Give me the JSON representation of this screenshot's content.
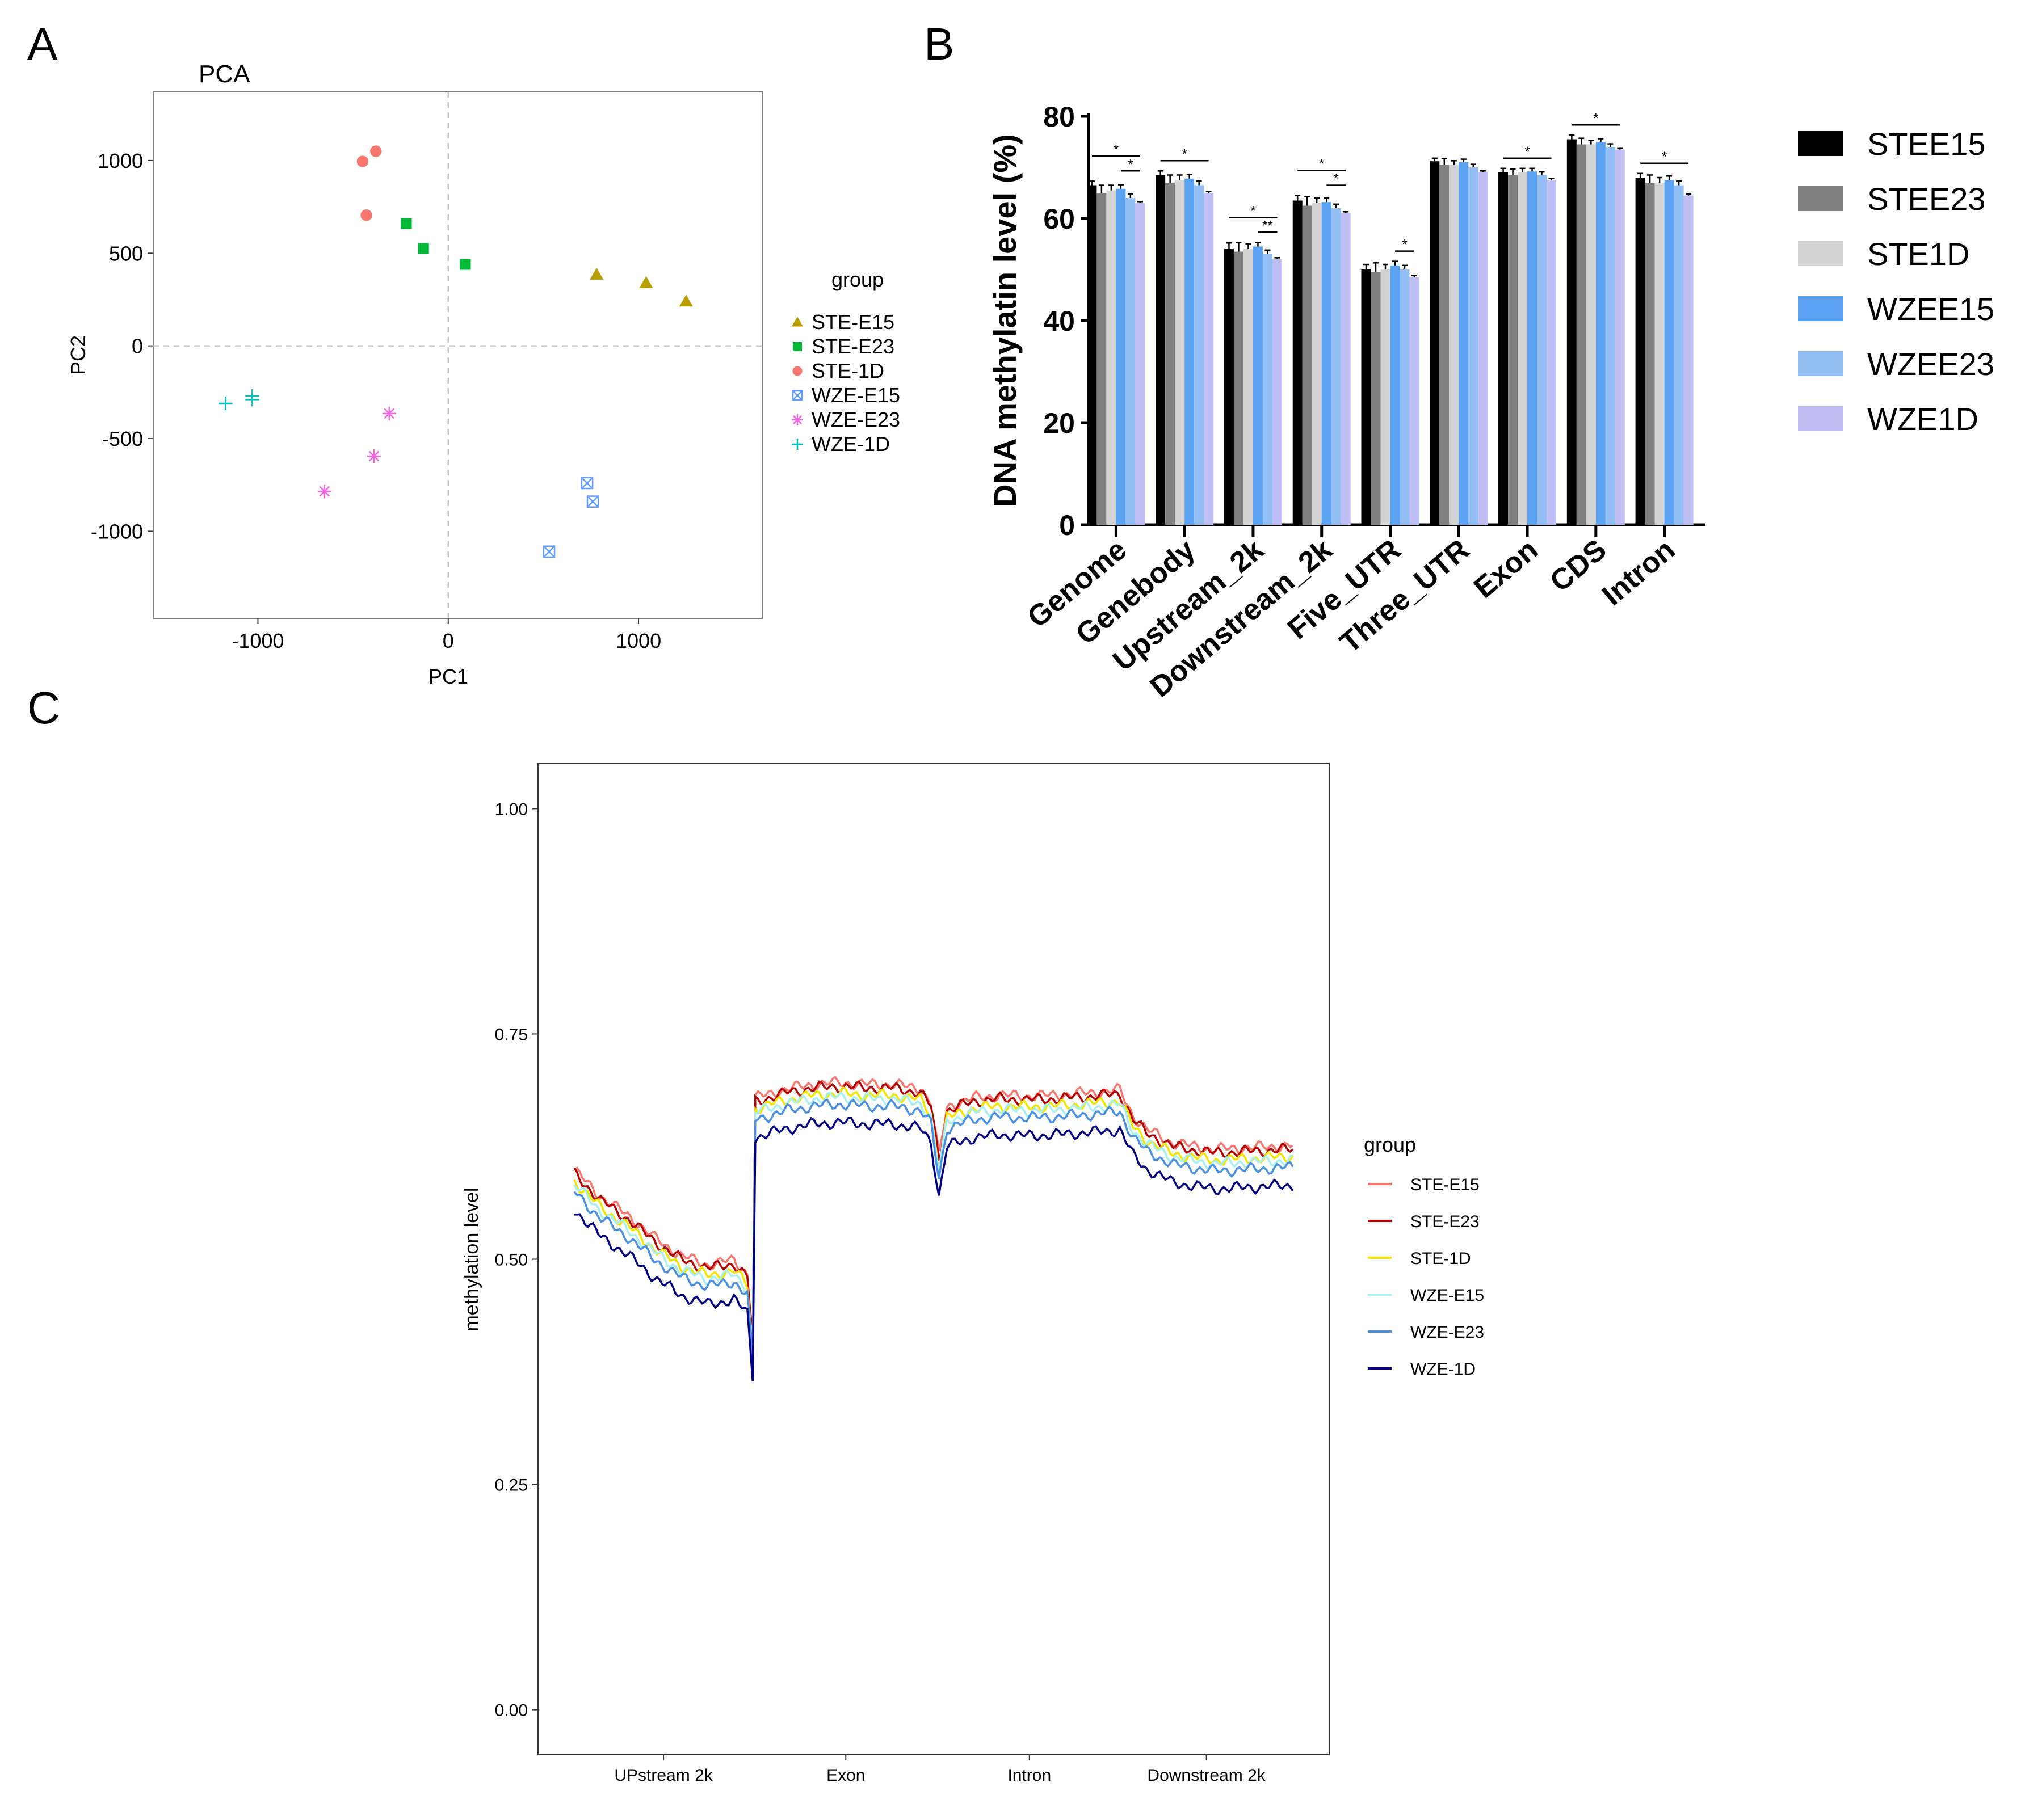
{
  "panel_labels": [
    "A",
    "B",
    "C"
  ],
  "chart_data": [
    {
      "panel": "A",
      "type": "scatter",
      "title": "PCA",
      "xlabel": "PC1",
      "ylabel": "PC2",
      "xlim": [
        -1550,
        1650
      ],
      "ylim": [
        -1470,
        1370
      ],
      "xticks": [
        -1000,
        0,
        1000
      ],
      "yticks": [
        1000,
        500,
        0,
        -500,
        -1000
      ],
      "xtick_labels": [
        "-1000",
        "0",
        "1000"
      ],
      "ytick_labels": [
        "1000",
        "500",
        "0",
        "-500",
        "-1000"
      ],
      "legend_title": "group",
      "legend_position": "right",
      "series": [
        {
          "name": "STE-E15",
          "marker": "triangle",
          "color": "#B79F00",
          "points": [
            [
              780,
              385
            ],
            [
              1040,
              340
            ],
            [
              1250,
              240
            ]
          ]
        },
        {
          "name": "STE-E23",
          "marker": "square",
          "color": "#00BA38",
          "points": [
            [
              -220,
              660
            ],
            [
              -130,
              525
            ],
            [
              90,
              440
            ]
          ]
        },
        {
          "name": "STE-1D",
          "marker": "circle",
          "color": "#F8766D",
          "points": [
            [
              -380,
              1050
            ],
            [
              -450,
              995
            ],
            [
              -430,
              705
            ]
          ]
        },
        {
          "name": "WZE-E15",
          "marker": "boxx",
          "color": "#619CFF",
          "points": [
            [
              730,
              -740
            ],
            [
              760,
              -840
            ],
            [
              530,
              -1110
            ]
          ]
        },
        {
          "name": "WZE-E23",
          "marker": "asterisk",
          "color": "#F564E3",
          "points": [
            [
              -310,
              -365
            ],
            [
              -390,
              -595
            ],
            [
              -650,
              -785
            ]
          ]
        },
        {
          "name": "WZE-1D",
          "marker": "plus",
          "color": "#00BFC4",
          "points": [
            [
              -1170,
              -310
            ],
            [
              -1030,
              -270
            ],
            [
              -1030,
              -290
            ]
          ]
        }
      ]
    },
    {
      "panel": "B",
      "type": "bar",
      "ylabel": "DNA methylatin level (%)",
      "ylim": [
        0,
        80
      ],
      "yticks": [
        "0",
        "20",
        "40",
        "60",
        "80"
      ],
      "categories": [
        "Genome",
        "Genebody",
        "Upstream_2k",
        "Downstream_2k",
        "Five_UTR",
        "Three_UTR",
        "Exon",
        "CDS",
        "Intron"
      ],
      "series": [
        {
          "name": "STEE15",
          "color": "#000000",
          "values": [
            66.5,
            68.5,
            54,
            63.5,
            50,
            71.2,
            69,
            75.5,
            68
          ],
          "errors": [
            0.8,
            0.8,
            1.2,
            1.0,
            1.0,
            0.6,
            0.8,
            0.8,
            0.8
          ]
        },
        {
          "name": "STEE23",
          "color": "#808080",
          "values": [
            65,
            67,
            53.5,
            62.5,
            49.5,
            70.5,
            68.5,
            74.5,
            67
          ],
          "errors": [
            1.5,
            1.5,
            1.8,
            1.8,
            1.8,
            1.2,
            1.2,
            1.2,
            1.5
          ]
        },
        {
          "name": "STE1D",
          "color": "#D3D3D3",
          "values": [
            65.5,
            67.5,
            54,
            63,
            50,
            70.5,
            69,
            74.5,
            67
          ],
          "errors": [
            1.0,
            1.0,
            1.0,
            1.0,
            1.0,
            0.8,
            0.8,
            0.8,
            1.0
          ]
        },
        {
          "name": "WZEE15",
          "color": "#5BA3F2",
          "values": [
            65.8,
            67.8,
            54.5,
            63.2,
            50.8,
            71,
            69.2,
            75,
            67.5
          ],
          "errors": [
            0.8,
            0.8,
            0.8,
            0.8,
            0.8,
            0.6,
            0.6,
            0.6,
            0.8
          ]
        },
        {
          "name": "WZEE23",
          "color": "#94BFF5",
          "values": [
            64,
            66.5,
            53,
            62,
            50,
            70,
            68.5,
            74,
            66.5
          ],
          "errors": [
            0.8,
            0.8,
            0.8,
            0.8,
            0.8,
            0.6,
            0.6,
            0.6,
            0.8
          ]
        },
        {
          "name": "WZE1D",
          "color": "#BFBFF5",
          "values": [
            63,
            65,
            52,
            61,
            48.5,
            69,
            67.5,
            73.5,
            64.5
          ],
          "errors": [
            0.3,
            0.3,
            0.3,
            0.3,
            0.3,
            0.3,
            0.3,
            0.3,
            0.3
          ]
        }
      ],
      "significance": [
        {
          "category": "Genome",
          "from": 0,
          "to": 5,
          "level": 1,
          "label": "*"
        },
        {
          "category": "Genome",
          "from": 3,
          "to": 5,
          "level": 0,
          "label": "*"
        },
        {
          "category": "Genebody",
          "from": 0,
          "to": 5,
          "level": 0,
          "label": "*"
        },
        {
          "category": "Upstream_2k",
          "from": 0,
          "to": 5,
          "level": 1,
          "label": "*"
        },
        {
          "category": "Upstream_2k",
          "from": 3,
          "to": 5,
          "level": 0,
          "label": "**"
        },
        {
          "category": "Downstream_2k",
          "from": 0,
          "to": 5,
          "level": 1,
          "label": "*"
        },
        {
          "category": "Downstream_2k",
          "from": 3,
          "to": 5,
          "level": 0,
          "label": "*"
        },
        {
          "category": "Five_UTR",
          "from": 3,
          "to": 5,
          "level": 0,
          "label": "*"
        },
        {
          "category": "Exon",
          "from": 0,
          "to": 5,
          "level": 0,
          "label": "*"
        },
        {
          "category": "CDS",
          "from": 0,
          "to": 5,
          "level": 0,
          "label": "*"
        },
        {
          "category": "Intron",
          "from": 0,
          "to": 5,
          "level": 0,
          "label": "*"
        }
      ],
      "legend_position": "right"
    },
    {
      "panel": "C",
      "type": "line",
      "ylabel": "methylation level",
      "ylim": [
        -0.05,
        1.05
      ],
      "yticks": [
        "0.00",
        "0.25",
        "0.50",
        "0.75",
        "1.00"
      ],
      "x_categories": [
        "UPstream 2k",
        "Exon",
        "Intron",
        "Downstream 2k"
      ],
      "legend_title": "group",
      "legend_position": "right",
      "series": [
        {
          "name": "STE-E15",
          "color": "#F8766D",
          "offset": 0.004
        },
        {
          "name": "STE-E23",
          "color": "#B30000",
          "offset": 0.0
        },
        {
          "name": "STE-1D",
          "color": "#F2E600",
          "offset": -0.008
        },
        {
          "name": "WZE-E15",
          "color": "#A8F0F0",
          "offset": -0.012
        },
        {
          "name": "WZE-E23",
          "color": "#4A90E2",
          "offset": -0.02
        },
        {
          "name": "WZE-1D",
          "color": "#000080",
          "offset": -0.04
        }
      ],
      "base_profile": [
        [
          0,
          0.595
        ],
        [
          10,
          0.565
        ],
        [
          20,
          0.545
        ],
        [
          30,
          0.52
        ],
        [
          40,
          0.5
        ],
        [
          50,
          0.49
        ],
        [
          60,
          0.495
        ],
        [
          65,
          0.48
        ],
        [
          67,
          0.41
        ],
        [
          68,
          0.675
        ],
        [
          80,
          0.685
        ],
        [
          90,
          0.69
        ],
        [
          100,
          0.692
        ],
        [
          110,
          0.69
        ],
        [
          120,
          0.69
        ],
        [
          130,
          0.685
        ],
        [
          134,
          0.67
        ],
        [
          137,
          0.61
        ],
        [
          140,
          0.665
        ],
        [
          150,
          0.675
        ],
        [
          160,
          0.678
        ],
        [
          170,
          0.677
        ],
        [
          180,
          0.678
        ],
        [
          190,
          0.68
        ],
        [
          200,
          0.682
        ],
        [
          205,
          0.684
        ],
        [
          210,
          0.655
        ],
        [
          215,
          0.64
        ],
        [
          225,
          0.625
        ],
        [
          240,
          0.618
        ],
        [
          255,
          0.62
        ],
        [
          270,
          0.622
        ]
      ],
      "x_segment_bounds": [
        0,
        67,
        137,
        205,
        270
      ]
    }
  ]
}
